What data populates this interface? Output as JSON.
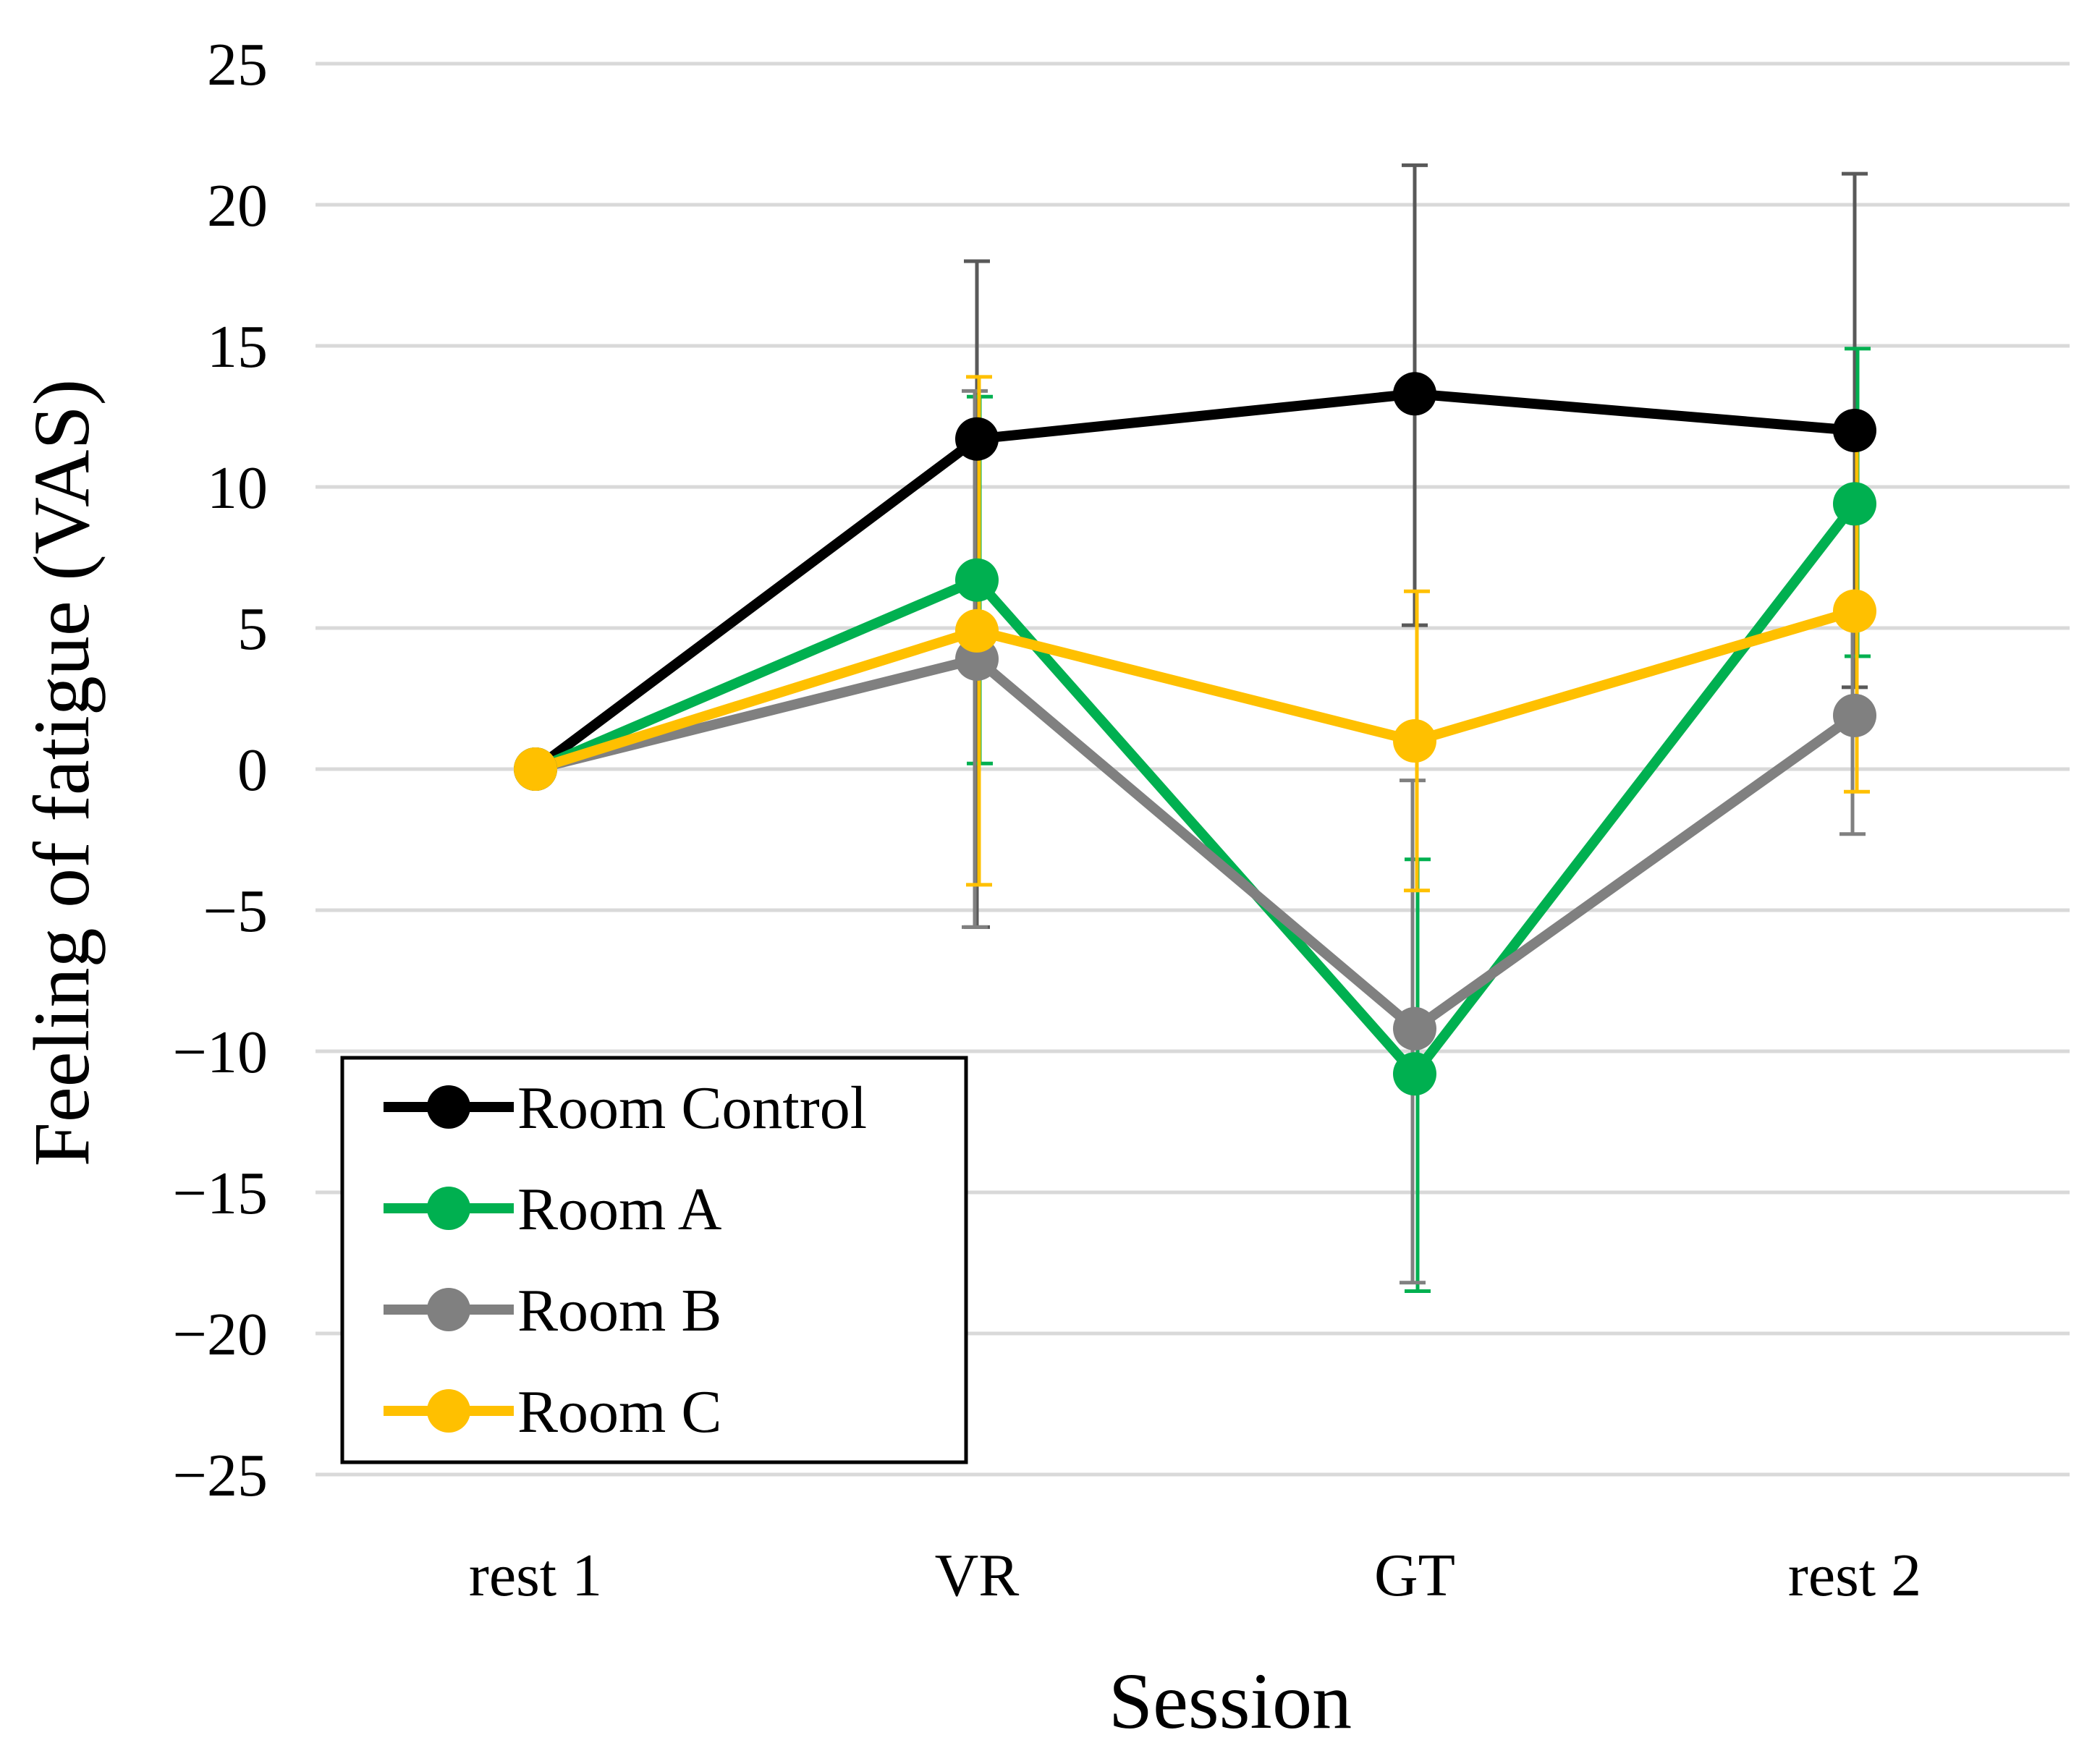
{
  "chart_data": {
    "type": "line",
    "title": "",
    "xlabel": "Session",
    "ylabel": "Feeling of fatigue (VAS)",
    "categories": [
      "rest 1",
      "VR",
      "GT",
      "rest 2"
    ],
    "ylim": [
      -25,
      25
    ],
    "yticks": [
      25,
      20,
      15,
      10,
      5,
      0,
      -5,
      -10,
      -15,
      -20,
      -25
    ],
    "ytick_labels": [
      "25",
      "20",
      "15",
      "10",
      "5",
      "0",
      "−5",
      "−10",
      "−15",
      "−20",
      "−25"
    ],
    "grid": true,
    "legend_position": "bottom-left",
    "series": [
      {
        "name": "Room Control",
        "color": "#000000",
        "values": [
          0,
          11.7,
          13.3,
          12.0
        ],
        "error": [
          [
            0,
            0
          ],
          [
            -5.6,
            18.0
          ],
          [
            5.1,
            21.4
          ],
          [
            2.9,
            21.1
          ]
        ]
      },
      {
        "name": "Room A",
        "color": "#00B050",
        "values": [
          0,
          6.7,
          -10.8,
          9.4
        ],
        "error": [
          [
            0,
            0
          ],
          [
            0.2,
            13.2
          ],
          [
            -18.5,
            -3.2
          ],
          [
            4.0,
            14.9
          ]
        ]
      },
      {
        "name": "Room B",
        "color": "#808080",
        "values": [
          0,
          3.9,
          -9.2,
          1.9
        ],
        "error": [
          [
            0,
            0
          ],
          [
            -5.6,
            13.4
          ],
          [
            -18.2,
            -0.4
          ],
          [
            -2.3,
            6.1
          ]
        ]
      },
      {
        "name": "Room C",
        "color": "#FFC000",
        "values": [
          0,
          4.9,
          1.0,
          5.6
        ],
        "error": [
          [
            0,
            0
          ],
          [
            -4.1,
            13.9
          ],
          [
            -4.3,
            6.3
          ],
          [
            -0.8,
            12.0
          ]
        ]
      }
    ]
  }
}
